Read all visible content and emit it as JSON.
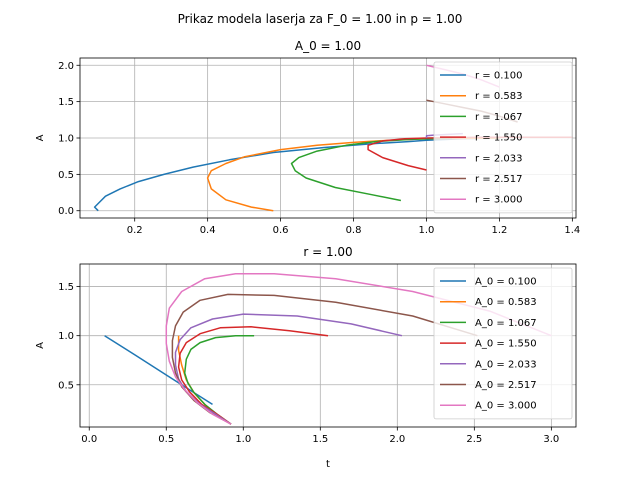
{
  "figure": {
    "suptitle": "Prikaz modela laserja za F_0 = 1.00 in p = 1.00"
  },
  "chart_data": [
    {
      "type": "line",
      "title": "A_0 = 1.00",
      "xlabel": "",
      "ylabel": "A",
      "xlim": [
        0.05,
        1.41
      ],
      "ylim": [
        -0.1,
        2.1
      ],
      "xticks": [
        0.2,
        0.4,
        0.6,
        0.8,
        1.0,
        1.2,
        1.4
      ],
      "xtick_labels": [
        "0.2",
        "0.4",
        "0.6",
        "0.8",
        "1.0",
        "1.2",
        "1.4"
      ],
      "yticks": [
        0.0,
        0.5,
        1.0,
        1.5,
        2.0
      ],
      "ytick_labels": [
        "0.0",
        "0.5",
        "1.0",
        "1.5",
        "2.0"
      ],
      "grid": true,
      "legend_position": "upper right",
      "series": [
        {
          "name": "r = 0.100",
          "color": "#1f77b4",
          "points": [
            [
              0.1,
              0.0
            ],
            [
              0.09,
              0.05
            ],
            [
              0.1,
              0.1
            ],
            [
              0.12,
              0.2
            ],
            [
              0.16,
              0.3
            ],
            [
              0.21,
              0.4
            ],
            [
              0.28,
              0.5
            ],
            [
              0.36,
              0.6
            ],
            [
              0.46,
              0.7
            ],
            [
              0.58,
              0.8
            ],
            [
              0.72,
              0.87
            ],
            [
              0.85,
              0.92
            ],
            [
              0.95,
              0.95
            ],
            [
              1.0,
              0.97
            ],
            [
              1.1,
              0.99
            ],
            [
              1.2,
              1.0
            ]
          ]
        },
        {
          "name": "r = 0.583",
          "color": "#ff7f0e",
          "points": [
            [
              0.58,
              0.0
            ],
            [
              0.52,
              0.05
            ],
            [
              0.45,
              0.15
            ],
            [
              0.41,
              0.3
            ],
            [
              0.4,
              0.45
            ],
            [
              0.41,
              0.55
            ],
            [
              0.45,
              0.65
            ],
            [
              0.5,
              0.74
            ],
            [
              0.6,
              0.84
            ],
            [
              0.7,
              0.9
            ],
            [
              0.8,
              0.94
            ],
            [
              0.9,
              0.97
            ],
            [
              1.0,
              0.99
            ],
            [
              1.2,
              1.0
            ]
          ]
        },
        {
          "name": "r = 1.067",
          "color": "#2ca02c",
          "points": [
            [
              0.93,
              0.14
            ],
            [
              0.85,
              0.22
            ],
            [
              0.75,
              0.32
            ],
            [
              0.67,
              0.45
            ],
            [
              0.64,
              0.55
            ],
            [
              0.63,
              0.65
            ],
            [
              0.65,
              0.73
            ],
            [
              0.7,
              0.82
            ],
            [
              0.78,
              0.9
            ],
            [
              0.86,
              0.95
            ],
            [
              0.95,
              0.98
            ],
            [
              1.0,
              0.99
            ],
            [
              1.07,
              1.0
            ]
          ]
        },
        {
          "name": "r = 1.550",
          "color": "#d62728",
          "points": [
            [
              1.0,
              0.56
            ],
            [
              0.95,
              0.62
            ],
            [
              0.88,
              0.73
            ],
            [
              0.84,
              0.84
            ],
            [
              0.84,
              0.9
            ],
            [
              0.88,
              0.96
            ],
            [
              0.94,
              0.99
            ],
            [
              1.0,
              1.0
            ],
            [
              1.15,
              1.01
            ],
            [
              1.3,
              1.01
            ],
            [
              1.4,
              1.01
            ]
          ]
        },
        {
          "name": "r = 2.033",
          "color": "#9467bd",
          "points": [
            [
              1.0,
              1.0
            ],
            [
              1.0,
              1.03
            ],
            [
              1.02,
              1.04
            ],
            [
              1.06,
              1.05
            ],
            [
              1.1,
              1.06
            ]
          ]
        },
        {
          "name": "r = 2.517",
          "color": "#8c564b",
          "points": [
            [
              1.0,
              1.52
            ],
            [
              1.05,
              1.47
            ],
            [
              1.1,
              1.42
            ],
            [
              1.15,
              1.37
            ],
            [
              1.2,
              1.3
            ],
            [
              1.25,
              1.22
            ]
          ]
        },
        {
          "name": "r = 3.000",
          "color": "#e377c2",
          "points": [
            [
              1.0,
              2.0
            ],
            [
              1.05,
              1.94
            ],
            [
              1.1,
              1.88
            ],
            [
              1.15,
              1.8
            ],
            [
              1.2,
              1.7
            ]
          ]
        }
      ]
    },
    {
      "type": "line",
      "title": "r = 1.00",
      "xlabel": "t",
      "ylabel": "A",
      "xlim": [
        -0.06,
        3.16
      ],
      "ylim": [
        0.07,
        1.73
      ],
      "xticks": [
        0.0,
        0.5,
        1.0,
        1.5,
        2.0,
        2.5,
        3.0
      ],
      "xtick_labels": [
        "0.0",
        "0.5",
        "1.0",
        "1.5",
        "2.0",
        "2.5",
        "3.0"
      ],
      "yticks": [
        0.5,
        1.0,
        1.5
      ],
      "ytick_labels": [
        "0.5",
        "1.0",
        "1.5"
      ],
      "grid": true,
      "legend_position": "upper right",
      "series": [
        {
          "name": "A_0 = 0.100",
          "color": "#1f77b4",
          "points": [
            [
              0.1,
              1.0
            ],
            [
              0.3,
              0.8
            ],
            [
              0.5,
              0.6
            ],
            [
              0.7,
              0.4
            ],
            [
              0.8,
              0.3
            ]
          ]
        },
        {
          "name": "A_0 = 0.583",
          "color": "#ff7f0e",
          "points": [
            [
              0.58,
              1.0
            ],
            [
              0.58,
              0.85
            ],
            [
              0.6,
              0.7
            ],
            [
              0.63,
              0.55
            ],
            [
              0.68,
              0.42
            ],
            [
              0.75,
              0.3
            ],
            [
              0.82,
              0.2
            ],
            [
              0.92,
              0.1
            ]
          ]
        },
        {
          "name": "A_0 = 1.067",
          "color": "#2ca02c",
          "points": [
            [
              1.07,
              1.0
            ],
            [
              0.95,
              1.0
            ],
            [
              0.82,
              0.98
            ],
            [
              0.72,
              0.93
            ],
            [
              0.66,
              0.86
            ],
            [
              0.63,
              0.76
            ],
            [
              0.62,
              0.62
            ],
            [
              0.64,
              0.52
            ],
            [
              0.68,
              0.42
            ],
            [
              0.75,
              0.3
            ],
            [
              0.83,
              0.2
            ],
            [
              0.92,
              0.1
            ]
          ]
        },
        {
          "name": "A_0 = 1.550",
          "color": "#d62728",
          "points": [
            [
              1.55,
              1.0
            ],
            [
              1.3,
              1.05
            ],
            [
              1.05,
              1.09
            ],
            [
              0.85,
              1.08
            ],
            [
              0.72,
              1.02
            ],
            [
              0.63,
              0.93
            ],
            [
              0.59,
              0.82
            ],
            [
              0.58,
              0.68
            ],
            [
              0.6,
              0.55
            ],
            [
              0.65,
              0.43
            ],
            [
              0.73,
              0.3
            ],
            [
              0.83,
              0.2
            ],
            [
              0.92,
              0.1
            ]
          ]
        },
        {
          "name": "A_0 = 2.033",
          "color": "#9467bd",
          "points": [
            [
              2.03,
              1.0
            ],
            [
              1.7,
              1.12
            ],
            [
              1.35,
              1.2
            ],
            [
              1.0,
              1.22
            ],
            [
              0.8,
              1.17
            ],
            [
              0.66,
              1.08
            ],
            [
              0.59,
              0.96
            ],
            [
              0.56,
              0.83
            ],
            [
              0.56,
              0.7
            ],
            [
              0.58,
              0.56
            ],
            [
              0.63,
              0.43
            ],
            [
              0.72,
              0.3
            ],
            [
              0.82,
              0.2
            ],
            [
              0.92,
              0.1
            ]
          ]
        },
        {
          "name": "A_0 = 2.517",
          "color": "#8c564b",
          "points": [
            [
              2.52,
              1.0
            ],
            [
              2.1,
              1.2
            ],
            [
              1.6,
              1.34
            ],
            [
              1.2,
              1.41
            ],
            [
              0.9,
              1.42
            ],
            [
              0.72,
              1.36
            ],
            [
              0.61,
              1.24
            ],
            [
              0.56,
              1.1
            ],
            [
              0.54,
              0.95
            ],
            [
              0.54,
              0.78
            ],
            [
              0.56,
              0.62
            ],
            [
              0.6,
              0.48
            ],
            [
              0.68,
              0.34
            ],
            [
              0.78,
              0.22
            ],
            [
              0.92,
              0.1
            ]
          ]
        },
        {
          "name": "A_0 = 3.000",
          "color": "#e377c2",
          "points": [
            [
              3.0,
              1.0
            ],
            [
              2.6,
              1.25
            ],
            [
              2.1,
              1.45
            ],
            [
              1.6,
              1.58
            ],
            [
              1.2,
              1.63
            ],
            [
              0.95,
              1.63
            ],
            [
              0.75,
              1.58
            ],
            [
              0.6,
              1.45
            ],
            [
              0.52,
              1.28
            ],
            [
              0.5,
              1.1
            ],
            [
              0.5,
              0.92
            ],
            [
              0.52,
              0.74
            ],
            [
              0.56,
              0.58
            ],
            [
              0.62,
              0.45
            ],
            [
              0.7,
              0.32
            ],
            [
              0.8,
              0.2
            ],
            [
              0.92,
              0.1
            ]
          ]
        }
      ]
    }
  ]
}
